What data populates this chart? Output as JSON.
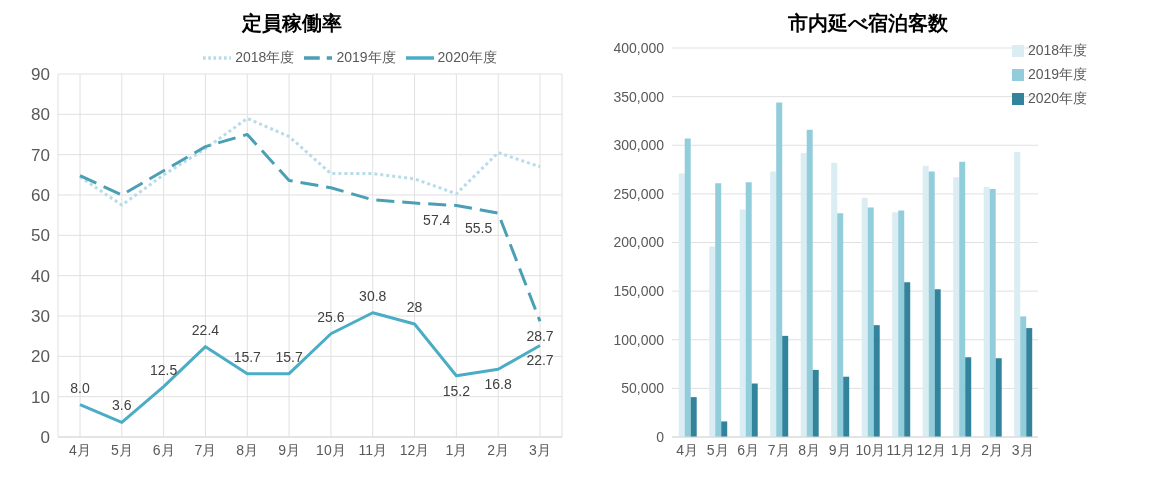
{
  "chart_data": [
    {
      "type": "line",
      "title": "定員稼働率",
      "categories": [
        "4月",
        "5月",
        "6月",
        "7月",
        "8月",
        "9月",
        "10月",
        "11月",
        "12月",
        "1月",
        "2月",
        "3月"
      ],
      "series": [
        {
          "name": "2018年度",
          "color": "#b7dbe8",
          "line_style": "dotted",
          "values": [
            64.5,
            57.5,
            65,
            71.5,
            79,
            74.5,
            65.3,
            65.3,
            64,
            60.3,
            70.5,
            67
          ]
        },
        {
          "name": "2019年度",
          "color": "#4a9fb5",
          "line_style": "dashed",
          "values": [
            64.8,
            60,
            66,
            72,
            75,
            63.6,
            61.8,
            58.8,
            58,
            57.4,
            55.5,
            28.7
          ],
          "value_labels": [
            null,
            null,
            null,
            null,
            null,
            null,
            null,
            null,
            null,
            "57.4",
            "55.5",
            "28.7"
          ]
        },
        {
          "name": "2020年度",
          "color": "#4bacc6",
          "line_style": "solid",
          "values": [
            8.0,
            3.6,
            12.5,
            22.4,
            15.7,
            15.7,
            25.6,
            30.8,
            28,
            15.2,
            16.8,
            22.7
          ],
          "value_labels": [
            "8.0",
            "3.6",
            "12.5",
            "22.4",
            "15.7",
            "15.7",
            "25.6",
            "30.8",
            "28",
            "15.2",
            "16.8",
            "22.7"
          ]
        }
      ],
      "ylim": [
        0,
        90
      ],
      "yticks": [
        0,
        10,
        20,
        30,
        40,
        50,
        60,
        70,
        80,
        90
      ],
      "grid": true,
      "legend": "top",
      "marker": "none"
    },
    {
      "type": "bar",
      "title": "市内延べ宿泊客数",
      "categories": [
        "4月",
        "5月",
        "6月",
        "7月",
        "8月",
        "9月",
        "10月",
        "11月",
        "12月",
        "1月",
        "2月",
        "3月"
      ],
      "series": [
        {
          "name": "2018年度",
          "color": "#daedf3",
          "values": [
            271000,
            196000,
            234000,
            273000,
            292000,
            282000,
            246000,
            231000,
            279000,
            267000,
            257000,
            293000
          ]
        },
        {
          "name": "2019年度",
          "color": "#92cddc",
          "values": [
            307000,
            261000,
            262000,
            344000,
            316000,
            230000,
            236000,
            233000,
            273000,
            283000,
            255000,
            124000
          ]
        },
        {
          "name": "2020年度",
          "color": "#31849b",
          "values": [
            41000,
            16000,
            55000,
            104000,
            69000,
            62000,
            115000,
            159000,
            152000,
            82000,
            81000,
            112000
          ]
        }
      ],
      "ylim": [
        0,
        400000
      ],
      "yticks": [
        {
          "value": 0,
          "label": "0"
        },
        {
          "value": 50000,
          "label": "50,000"
        },
        {
          "value": 100000,
          "label": "100,000"
        },
        {
          "value": 150000,
          "label": "150,000"
        },
        {
          "value": 200000,
          "label": "200,000"
        },
        {
          "value": 250000,
          "label": "250,000"
        },
        {
          "value": 300000,
          "label": "300,000"
        },
        {
          "value": 350000,
          "label": "350,000"
        },
        {
          "value": 400000,
          "label": "400,000"
        }
      ],
      "grid": "y",
      "legend": "top right"
    }
  ]
}
